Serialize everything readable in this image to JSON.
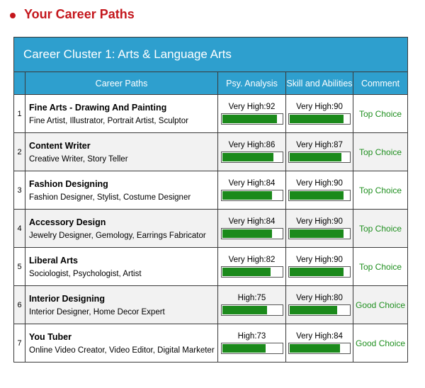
{
  "heading": "Your Career Paths",
  "cluster_title": "Career Cluster 1: Arts & Language Arts",
  "columns": [
    "",
    "Career Paths",
    "Psy. Analysis",
    "Skill and Abilities",
    "Comment"
  ],
  "rows": [
    {
      "num": "1",
      "title": "Fine Arts - Drawing And Painting",
      "sub": "Fine Artist, Illustrator, Portrait Artist, Sculptor",
      "psy_label": "Very High:92",
      "psy": 92,
      "skill_label": "Very High:90",
      "skill": 90,
      "comment": "Top Choice"
    },
    {
      "num": "2",
      "title": "Content Writer",
      "sub": "Creative Writer, Story Teller",
      "psy_label": "Very High:86",
      "psy": 86,
      "skill_label": "Very High:87",
      "skill": 87,
      "comment": "Top Choice"
    },
    {
      "num": "3",
      "title": "Fashion Designing",
      "sub": "Fashion Designer, Stylist, Costume Designer",
      "psy_label": "Very High:84",
      "psy": 84,
      "skill_label": "Very High:90",
      "skill": 90,
      "comment": "Top Choice"
    },
    {
      "num": "4",
      "title": "Accessory Design",
      "sub": "Jewelry Designer, Gemology, Earrings Fabricator",
      "psy_label": "Very High:84",
      "psy": 84,
      "skill_label": "Very High:90",
      "skill": 90,
      "comment": "Top Choice"
    },
    {
      "num": "5",
      "title": "Liberal Arts",
      "sub": "Sociologist, Psychologist, Artist",
      "psy_label": "Very High:82",
      "psy": 82,
      "skill_label": "Very High:90",
      "skill": 90,
      "comment": "Top Choice"
    },
    {
      "num": "6",
      "title": "Interior Designing",
      "sub": "Interior Designer, Home Decor Expert",
      "psy_label": "High:75",
      "psy": 75,
      "skill_label": "Very High:80",
      "skill": 80,
      "comment": "Good Choice"
    },
    {
      "num": "7",
      "title": "You Tuber",
      "sub": "Online Video Creator, Video Editor, Digital Marketer",
      "psy_label": "High:73",
      "psy": 73,
      "skill_label": "Very High:84",
      "skill": 84,
      "comment": "Good Choice"
    }
  ],
  "colors": {
    "heading": "#c4161c",
    "header_bg": "#2e9fce",
    "bar_fill": "#1b8a1b",
    "comment": "#1f8f1f"
  }
}
